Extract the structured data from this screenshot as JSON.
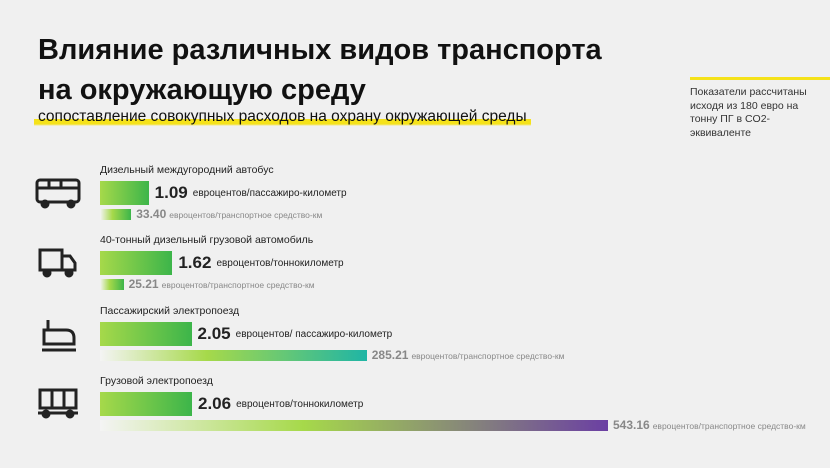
{
  "chart_data": {
    "type": "bar",
    "title": "Влияние различных видов транспорта на окружающую среду",
    "subtitle": "сопоставление совокупных расходов на охрану окружающей среды",
    "note": "Показатели рассчитаны исходя из 180 евро на тонну ПГ в CO2-эквиваленте",
    "categories": [
      "Дизельный междугородний автобус",
      "40-тонный дизельный грузовой автомобиль",
      "Пассажирский электропоезд",
      "Грузовой электропоезд"
    ],
    "series": [
      {
        "values": [
          1.09,
          1.62,
          2.05,
          2.06
        ],
        "units": [
          "евроцентов/пассажиро-километр",
          "евроцентов/тонно­километр",
          "евроцентов/ пассажиро-километр",
          "евроцентов/тонно­километр"
        ],
        "color": "#3cb54a"
      },
      {
        "values": [
          33.4,
          25.21,
          285.21,
          543.16
        ],
        "value_labels": [
          "33.40",
          "25.21",
          "285.21",
          "543.16"
        ],
        "units": [
          "евроцентов/транспортное средство-км",
          "евроцентов/транспортное средство-км",
          "евроцентов/транспортное средство-км",
          "евроцентов/транспортное средство-км"
        ],
        "colors": [
          "#3cb54a",
          "#3cb54a",
          "#1fb5a5",
          "#6b3fa3"
        ]
      }
    ]
  }
}
